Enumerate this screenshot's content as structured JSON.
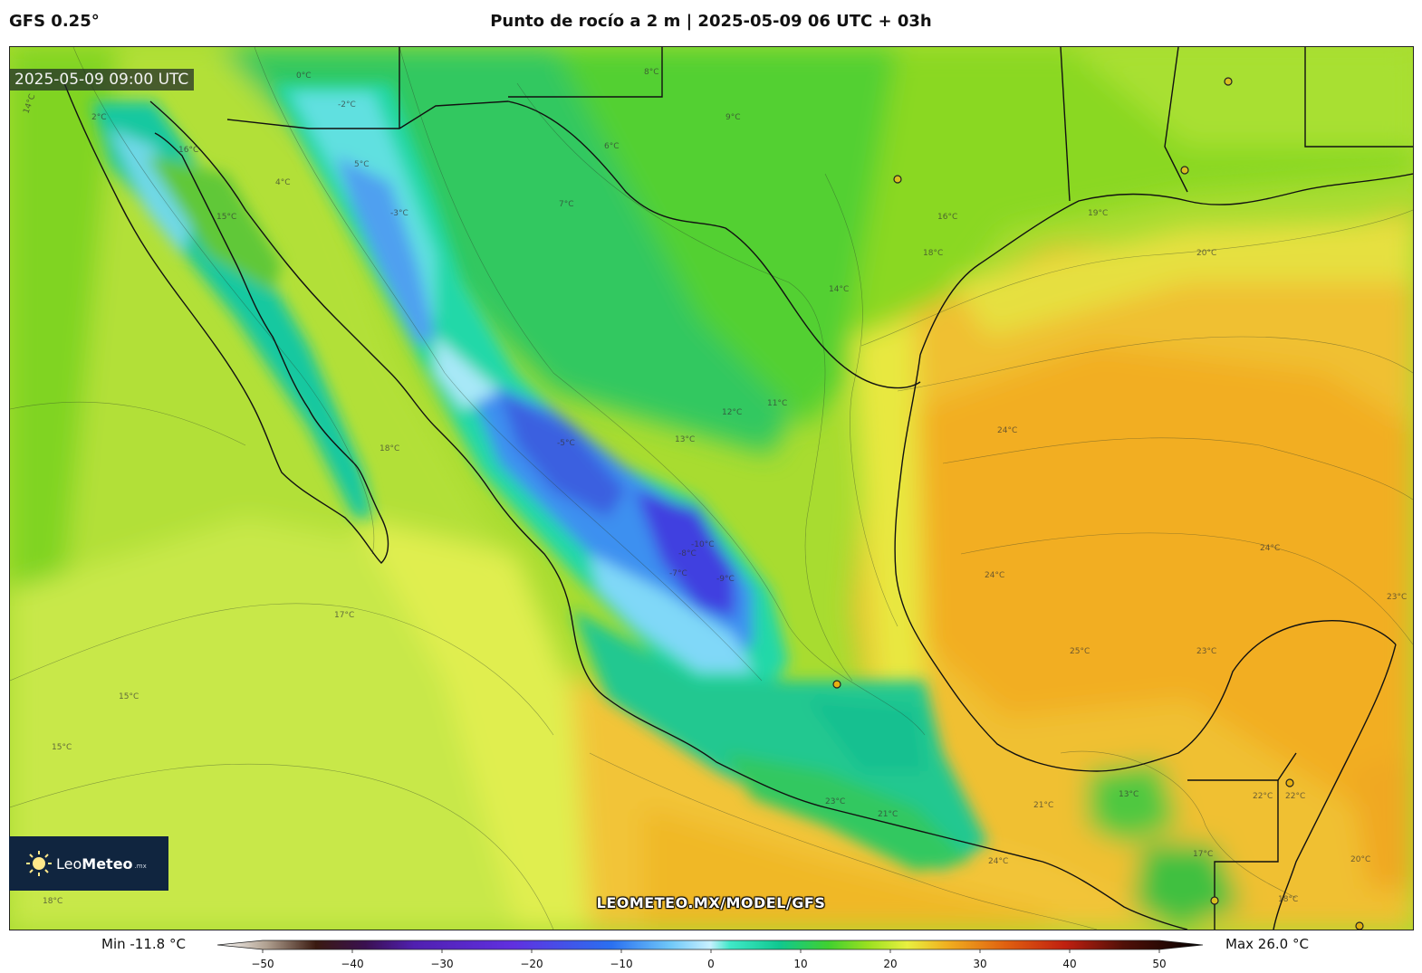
{
  "header": {
    "model": "GFS 0.25°",
    "title": "Punto de rocío a 2 m | 2025-05-09 06 UTC + 03h"
  },
  "timestamp": "2025-05-09 09:00 UTC",
  "watermark": "LEOMETEO.MX/MODEL/GFS",
  "logo": {
    "name_light": "Leo",
    "name_bold": "Meteo",
    "suffix": ".mx"
  },
  "colorbar": {
    "min_label": "Min -11.8 °C",
    "max_label": "Max 26.0 °C",
    "ticks": [
      "−50",
      "−40",
      "−30",
      "−20",
      "−10",
      "0",
      "10",
      "20",
      "30",
      "40",
      "50"
    ],
    "range": [
      -50,
      50
    ],
    "stops": [
      {
        "v": -50,
        "c": "#ffffff"
      },
      {
        "v": -45,
        "c": "#b0a090"
      },
      {
        "v": -40,
        "c": "#3a1a10"
      },
      {
        "v": -35,
        "c": "#3a1050"
      },
      {
        "v": -30,
        "c": "#5020b0"
      },
      {
        "v": -20,
        "c": "#6030e0"
      },
      {
        "v": -10,
        "c": "#2a70f0"
      },
      {
        "v": -4,
        "c": "#70c8f8"
      },
      {
        "v": 0,
        "c": "#c8f0ff"
      },
      {
        "v": 2,
        "c": "#40e8c8"
      },
      {
        "v": 7,
        "c": "#10c890"
      },
      {
        "v": 12,
        "c": "#40d030"
      },
      {
        "v": 16,
        "c": "#9ae020"
      },
      {
        "v": 20,
        "c": "#e8f040"
      },
      {
        "v": 24,
        "c": "#f0b020"
      },
      {
        "v": 30,
        "c": "#e06010"
      },
      {
        "v": 36,
        "c": "#c02010"
      },
      {
        "v": 42,
        "c": "#501008"
      },
      {
        "v": 50,
        "c": "#000000"
      }
    ]
  },
  "contour_labels": [
    "14°C",
    "0°C",
    "-2°C",
    "5°C",
    "2°C",
    "16°C",
    "15°C",
    "4°C",
    "8°C",
    "9°C",
    "6°C",
    "7°C",
    "11°C",
    "12°C",
    "13°C",
    "16°C",
    "18°C",
    "19°C",
    "20°C",
    "14°C",
    "18°C",
    "17°C",
    "24°C",
    "24°C",
    "24°C",
    "23°C",
    "25°C",
    "23°C",
    "22°C",
    "21°C",
    "23°C",
    "24°C",
    "22°C",
    "21°C",
    "20°C",
    "18°C",
    "17°C",
    "13°C",
    "15°C",
    "15°C",
    "18°C",
    "-8°C",
    "-10°C",
    "-9°C",
    "-7°C",
    "-5°C",
    "-3°C"
  ]
}
